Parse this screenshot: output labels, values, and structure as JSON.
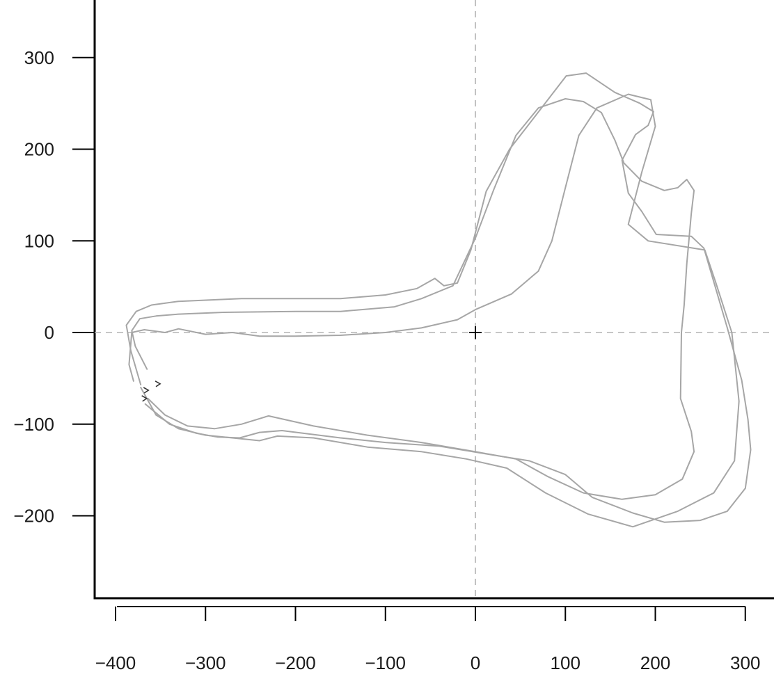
{
  "chart_data": {
    "type": "line",
    "title": "",
    "xlabel": "",
    "ylabel": "",
    "xlim": [
      -430,
      333
    ],
    "ylim": [
      -290,
      362
    ],
    "x_ticks": [
      -400,
      -300,
      -200,
      -100,
      0,
      100,
      200,
      300
    ],
    "y_ticks": [
      -200,
      -100,
      0,
      100,
      200,
      300
    ],
    "x_tick_labels": [
      "−400",
      "−300",
      "−200",
      "−100",
      "0",
      "100",
      "200",
      "300"
    ],
    "y_tick_labels": [
      "−200",
      "−100",
      "0",
      "100",
      "200",
      "300"
    ],
    "reference_lines": {
      "x": 0,
      "y": 0,
      "style": "dashed"
    },
    "origin_marker": [
      0,
      0
    ],
    "colors": {
      "trace": "#a6a6a6",
      "frame": "#000000",
      "reference": "#b3b3b3",
      "arrow": "#333333"
    },
    "series": [
      {
        "values": [
          [
            -372,
            -57
          ],
          [
            -383,
            -20
          ],
          [
            -388,
            8
          ],
          [
            -377,
            23
          ],
          [
            -360,
            30
          ],
          [
            -330,
            34
          ],
          [
            -260,
            37
          ],
          [
            -200,
            37
          ],
          [
            -150,
            37
          ],
          [
            -100,
            41
          ],
          [
            -65,
            48
          ],
          [
            -45,
            59
          ],
          [
            -35,
            51
          ],
          [
            -20,
            54
          ],
          [
            -5,
            90
          ],
          [
            12,
            154
          ],
          [
            38,
            200
          ],
          [
            68,
            238
          ],
          [
            101,
            280
          ],
          [
            123,
            283
          ],
          [
            155,
            262
          ],
          [
            183,
            250
          ],
          [
            198,
            241
          ],
          [
            192,
            226
          ],
          [
            178,
            216
          ],
          [
            163,
            188
          ],
          [
            170,
            152
          ],
          [
            185,
            132
          ],
          [
            201,
            107
          ],
          [
            240,
            105
          ],
          [
            254,
            92
          ],
          [
            280,
            5
          ],
          [
            296,
            -52
          ],
          [
            303,
            -95
          ],
          [
            306,
            -128
          ],
          [
            300,
            -170
          ],
          [
            280,
            -195
          ],
          [
            250,
            -205
          ],
          [
            210,
            -207
          ],
          [
            175,
            -197
          ],
          [
            130,
            -180
          ],
          [
            100,
            -155
          ],
          [
            60,
            -140
          ],
          [
            15,
            -133
          ],
          [
            -40,
            -124
          ],
          [
            -100,
            -120
          ],
          [
            -150,
            -115
          ],
          [
            -215,
            -107
          ],
          [
            -240,
            -109
          ],
          [
            -262,
            -115
          ],
          [
            -287,
            -114
          ],
          [
            -310,
            -110
          ],
          [
            -340,
            -100
          ],
          [
            -367,
            -78
          ]
        ]
      },
      {
        "values": [
          [
            -365,
            -40
          ],
          [
            -378,
            -15
          ],
          [
            -382,
            2
          ],
          [
            -373,
            15
          ],
          [
            -355,
            18
          ],
          [
            -330,
            20
          ],
          [
            -280,
            22
          ],
          [
            -200,
            23
          ],
          [
            -150,
            23
          ],
          [
            -90,
            28
          ],
          [
            -60,
            37
          ],
          [
            -25,
            51
          ],
          [
            0,
            103
          ],
          [
            20,
            155
          ],
          [
            45,
            215
          ],
          [
            70,
            245
          ],
          [
            100,
            255
          ],
          [
            120,
            252
          ],
          [
            140,
            240
          ],
          [
            155,
            210
          ],
          [
            165,
            185
          ],
          [
            185,
            165
          ],
          [
            210,
            155
          ],
          [
            225,
            158
          ],
          [
            235,
            167
          ],
          [
            243,
            155
          ],
          [
            240,
            130
          ],
          [
            235,
            75
          ],
          [
            232,
            30
          ],
          [
            229,
            0
          ],
          [
            228,
            -72
          ],
          [
            240,
            -108
          ],
          [
            243,
            -130
          ],
          [
            230,
            -160
          ],
          [
            200,
            -177
          ],
          [
            163,
            -182
          ],
          [
            120,
            -175
          ],
          [
            80,
            -157
          ],
          [
            45,
            -138
          ],
          [
            0,
            -130
          ],
          [
            -60,
            -120
          ],
          [
            -120,
            -112
          ],
          [
            -180,
            -102
          ],
          [
            -230,
            -91
          ],
          [
            -260,
            -100
          ],
          [
            -290,
            -105
          ],
          [
            -320,
            -102
          ],
          [
            -345,
            -90
          ],
          [
            -364,
            -72
          ]
        ]
      },
      {
        "values": [
          [
            -380,
            -53
          ],
          [
            -385,
            -35
          ],
          [
            -382,
            0
          ],
          [
            -368,
            3
          ],
          [
            -345,
            0
          ],
          [
            -330,
            4
          ],
          [
            -300,
            -2
          ],
          [
            -270,
            0
          ],
          [
            -240,
            -4
          ],
          [
            -200,
            -4
          ],
          [
            -150,
            -3
          ],
          [
            -100,
            0
          ],
          [
            -60,
            5
          ],
          [
            -20,
            14
          ],
          [
            0,
            25
          ],
          [
            40,
            42
          ],
          [
            70,
            67
          ],
          [
            85,
            100
          ],
          [
            100,
            158
          ],
          [
            115,
            215
          ],
          [
            135,
            245
          ],
          [
            170,
            260
          ],
          [
            195,
            254
          ],
          [
            200,
            225
          ],
          [
            185,
            175
          ],
          [
            170,
            118
          ],
          [
            192,
            100
          ],
          [
            255,
            90
          ],
          [
            267,
            55
          ],
          [
            285,
            0
          ],
          [
            293,
            -75
          ],
          [
            288,
            -140
          ],
          [
            265,
            -175
          ],
          [
            225,
            -195
          ],
          [
            175,
            -212
          ],
          [
            125,
            -198
          ],
          [
            78,
            -175
          ],
          [
            35,
            -148
          ],
          [
            -10,
            -138
          ],
          [
            -60,
            -130
          ],
          [
            -120,
            -125
          ],
          [
            -180,
            -115
          ],
          [
            -220,
            -113
          ],
          [
            -240,
            -118
          ],
          [
            -270,
            -115
          ],
          [
            -300,
            -112
          ],
          [
            -330,
            -105
          ],
          [
            -355,
            -90
          ],
          [
            -372,
            -60
          ]
        ]
      }
    ],
    "arrow_marks": [
      {
        "x": -352,
        "y": -56
      },
      {
        "x": -365,
        "y": -63
      },
      {
        "x": -367,
        "y": -72
      }
    ]
  }
}
